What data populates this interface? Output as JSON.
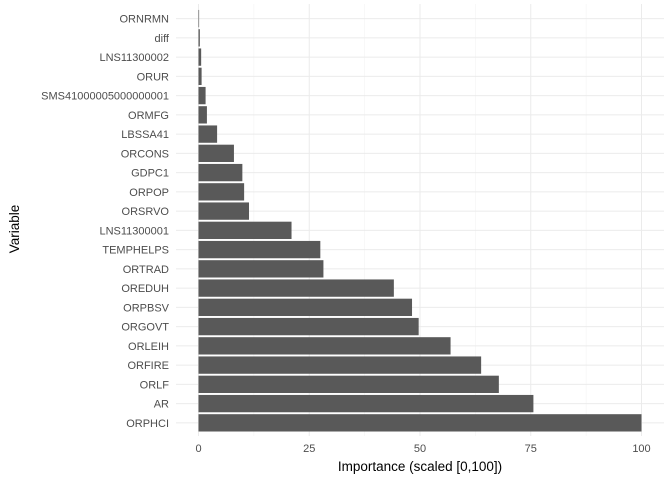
{
  "chart_data": {
    "type": "bar",
    "orientation": "horizontal",
    "xlabel": "Importance (scaled [0,100])",
    "ylabel": "Variable",
    "xlim": [
      0,
      100
    ],
    "x_ticks": [
      0,
      25,
      50,
      75,
      100
    ],
    "grid": true,
    "bar_color": "#595959",
    "categories": [
      "ORNRMN",
      "diff",
      "LNS11300002",
      "ORUR",
      "SMS41000005000000001",
      "ORMFG",
      "LBSSA41",
      "ORCONS",
      "GDPC1",
      "ORPOP",
      "ORSRVO",
      "LNS11300001",
      "TEMPHELPS",
      "ORTRAD",
      "OREDUH",
      "ORPBSV",
      "ORGOVT",
      "ORLEIH",
      "ORFIRE",
      "ORLF",
      "AR",
      "ORPHCI"
    ],
    "values": [
      0.0,
      0.3,
      0.6,
      0.7,
      1.6,
      1.9,
      4.2,
      8.0,
      9.9,
      10.3,
      11.4,
      21.0,
      27.5,
      28.2,
      44.1,
      48.2,
      49.7,
      56.9,
      63.8,
      67.8,
      75.6,
      100.0
    ]
  }
}
